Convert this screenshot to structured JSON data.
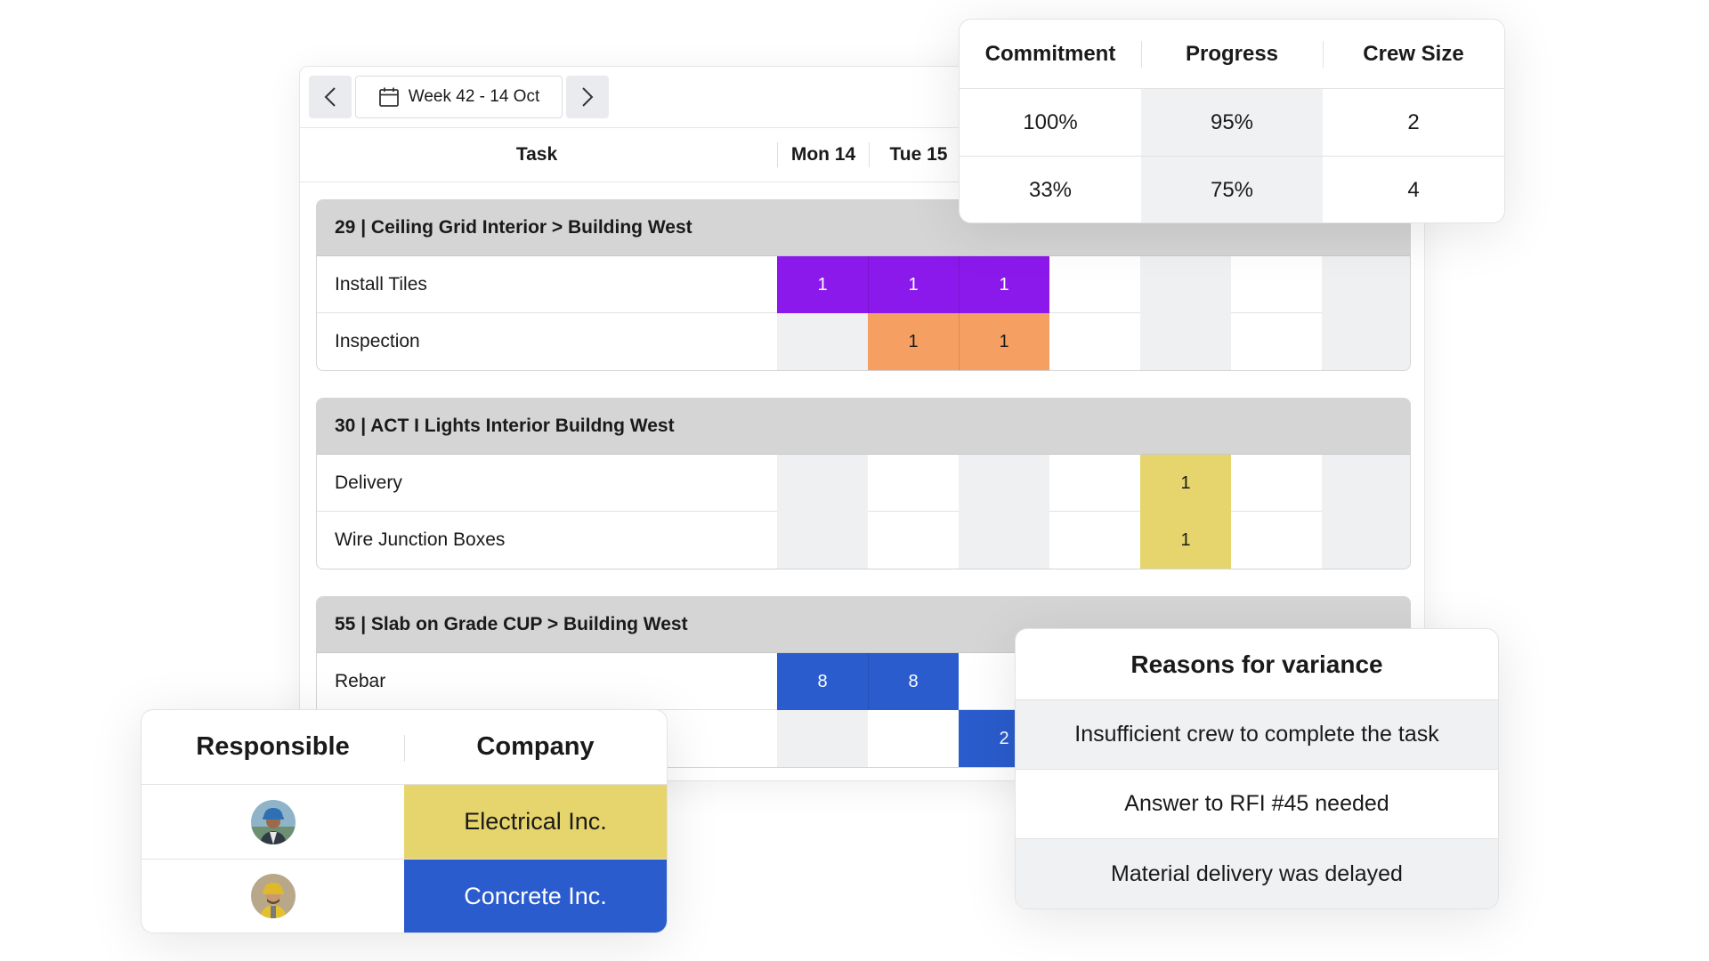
{
  "week_nav": {
    "prev_icon": "chevron-left-icon",
    "next_icon": "chevron-right-icon",
    "calendar_icon": "calendar-icon",
    "week_label": "Week 42 - 14 Oct"
  },
  "schedule": {
    "task_header": "Task",
    "days": [
      "Mon 14",
      "Tue 15"
    ],
    "groups": [
      {
        "title": "29 | Ceiling Grid Interior > Building West",
        "tasks": [
          {
            "name": "Install Tiles",
            "cells": [
              "1",
              "1",
              "1"
            ]
          },
          {
            "name": "Inspection",
            "cells": [
              "1",
              "1"
            ]
          }
        ]
      },
      {
        "title": "30 | ACT I Lights Interior Buildng West",
        "tasks": [
          {
            "name": "Delivery",
            "cells": [
              "1"
            ]
          },
          {
            "name": "Wire Junction Boxes",
            "cells": [
              "1"
            ]
          }
        ]
      },
      {
        "title": "55 | Slab on Grade CUP > Building West",
        "tasks": [
          {
            "name": "Rebar",
            "cells": [
              "8",
              "8"
            ]
          },
          {
            "name": "",
            "cells": [
              "2"
            ]
          }
        ]
      }
    ],
    "colors": {
      "purple": "#8c19ec",
      "orange": "#f5a062",
      "yellow": "#e6d46c",
      "blue": "#2a5ccd"
    }
  },
  "metrics": {
    "headers": [
      "Commitment",
      "Progress",
      "Crew Size"
    ],
    "rows": [
      [
        "100%",
        "95%",
        "2"
      ],
      [
        "33%",
        "75%",
        "4"
      ]
    ]
  },
  "responsible": {
    "headers": [
      "Responsible",
      "Company"
    ],
    "rows": [
      {
        "avatar": "worker-avatar-1",
        "company": "Electrical Inc.",
        "color": "#e6d46c"
      },
      {
        "avatar": "worker-avatar-2",
        "company": "Concrete Inc.",
        "color": "#2a5ccd"
      }
    ]
  },
  "reasons": {
    "title": "Reasons for variance",
    "items": [
      "Insufficient crew to complete the task",
      "Answer to RFI #45 needed",
      "Material delivery was delayed"
    ]
  }
}
